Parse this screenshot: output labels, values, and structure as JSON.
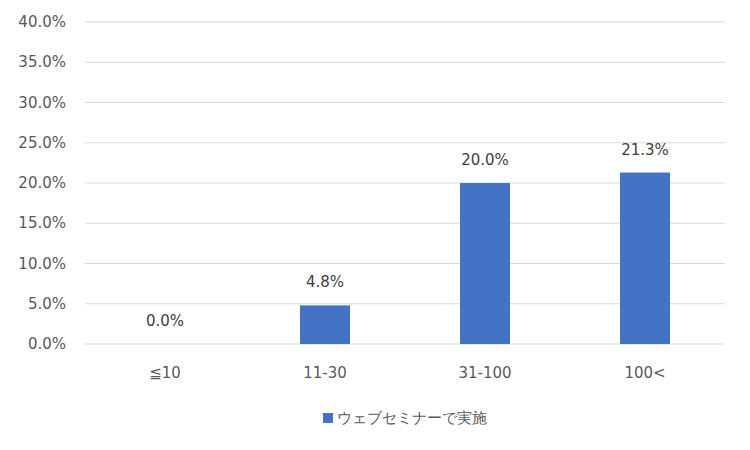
{
  "chart_data": {
    "type": "bar",
    "categories": [
      "≦10",
      "11-30",
      "31-100",
      "100<"
    ],
    "series": [
      {
        "name": "ウェブセミナーで実施",
        "color": "#4472c4",
        "values": [
          0,
          4.8,
          20,
          21.3
        ],
        "value_labels": [
          "0.0%",
          "4.8%",
          "20.0%",
          "21.3%"
        ]
      }
    ],
    "ylim": [
      0,
      40
    ],
    "yticks": [
      {
        "value": 0,
        "label": "0.0%"
      },
      {
        "value": 5,
        "label": "5.0%"
      },
      {
        "value": 10,
        "label": "10.0%"
      },
      {
        "value": 15,
        "label": "15.0%"
      },
      {
        "value": 20,
        "label": "20.0%"
      },
      {
        "value": 25,
        "label": "25.0%"
      },
      {
        "value": 30,
        "label": "30.0%"
      },
      {
        "value": 35,
        "label": "35.0%"
      },
      {
        "value": 40,
        "label": "40.0%"
      }
    ],
    "grid": true,
    "data_labels": true,
    "legend": "bottom"
  }
}
